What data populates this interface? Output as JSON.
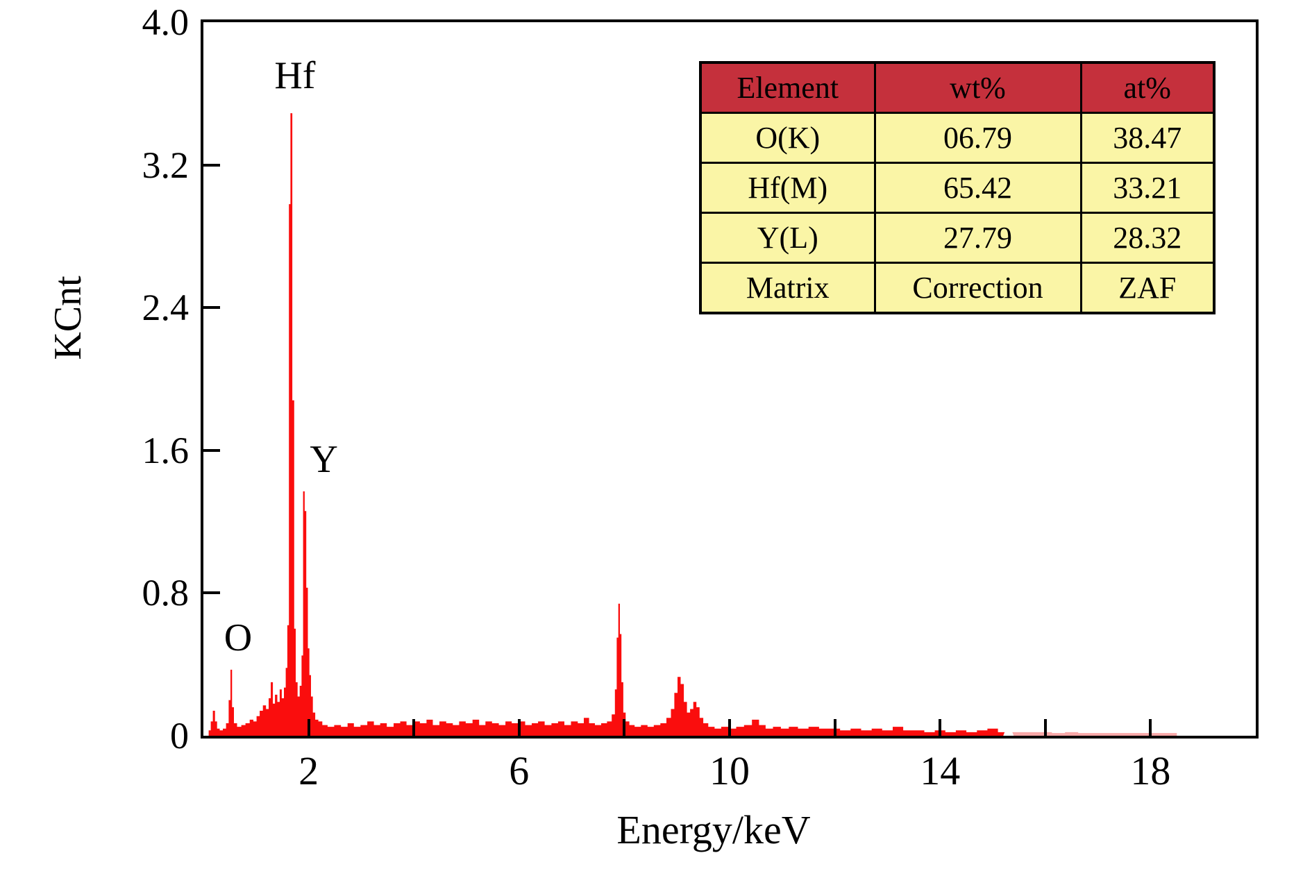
{
  "figure": {
    "background": "#ffffff",
    "frame_color": "#000000"
  },
  "chart_data": {
    "type": "area",
    "title": "",
    "xlabel": "Energy/keV",
    "ylabel": "KCnt",
    "xlim": [
      0,
      20
    ],
    "ylim": [
      0,
      4.0
    ],
    "grid": false,
    "x_ticks": [
      {
        "v": 2,
        "label": "2"
      },
      {
        "v": 4,
        "label": ""
      },
      {
        "v": 6,
        "label": "6"
      },
      {
        "v": 8,
        "label": ""
      },
      {
        "v": 10,
        "label": "10"
      },
      {
        "v": 12,
        "label": ""
      },
      {
        "v": 14,
        "label": "14"
      },
      {
        "v": 16,
        "label": ""
      },
      {
        "v": 18,
        "label": "18"
      }
    ],
    "y_ticks": [
      {
        "v": 0,
        "label": "0"
      },
      {
        "v": 0.8,
        "label": "0.8"
      },
      {
        "v": 1.6,
        "label": "1.6"
      },
      {
        "v": 2.4,
        "label": "2.4"
      },
      {
        "v": 3.2,
        "label": "3.2"
      },
      {
        "v": 4.0,
        "label": "4.0"
      }
    ],
    "annotations": [
      {
        "text": "O",
        "x": 0.66,
        "y": 0.55
      },
      {
        "text": "Hf",
        "x": 1.74,
        "y": 3.7
      },
      {
        "text": "Y",
        "x": 2.29,
        "y": 1.55
      }
    ],
    "series": [
      {
        "name": "EDS spectrum",
        "color": "#FA0D0D",
        "faded_color": "#F9A8A8",
        "faded_above_x": 15.3,
        "points": [
          [
            0.08,
            0.0
          ],
          [
            0.12,
            0.03
          ],
          [
            0.16,
            0.08
          ],
          [
            0.2,
            0.14
          ],
          [
            0.24,
            0.08
          ],
          [
            0.28,
            0.04
          ],
          [
            0.34,
            0.03
          ],
          [
            0.4,
            0.04
          ],
          [
            0.46,
            0.07
          ],
          [
            0.5,
            0.2
          ],
          [
            0.53,
            0.37
          ],
          [
            0.56,
            0.16
          ],
          [
            0.6,
            0.07
          ],
          [
            0.68,
            0.05
          ],
          [
            0.76,
            0.06
          ],
          [
            0.84,
            0.07
          ],
          [
            0.92,
            0.09
          ],
          [
            0.98,
            0.08
          ],
          [
            1.04,
            0.11
          ],
          [
            1.1,
            0.14
          ],
          [
            1.16,
            0.17
          ],
          [
            1.22,
            0.15
          ],
          [
            1.26,
            0.21
          ],
          [
            1.3,
            0.3
          ],
          [
            1.34,
            0.18
          ],
          [
            1.38,
            0.23
          ],
          [
            1.43,
            0.19
          ],
          [
            1.47,
            0.26
          ],
          [
            1.51,
            0.21
          ],
          [
            1.55,
            0.27
          ],
          [
            1.58,
            0.38
          ],
          [
            1.61,
            0.62
          ],
          [
            1.64,
            2.98
          ],
          [
            1.67,
            3.49
          ],
          [
            1.71,
            1.88
          ],
          [
            1.74,
            0.6
          ],
          [
            1.77,
            0.3
          ],
          [
            1.81,
            0.22
          ],
          [
            1.85,
            0.28
          ],
          [
            1.88,
            0.45
          ],
          [
            1.91,
            1.37
          ],
          [
            1.94,
            1.26
          ],
          [
            1.97,
            0.83
          ],
          [
            2.0,
            0.49
          ],
          [
            2.03,
            0.34
          ],
          [
            2.06,
            0.22
          ],
          [
            2.1,
            0.13
          ],
          [
            2.15,
            0.09
          ],
          [
            2.22,
            0.08
          ],
          [
            2.3,
            0.06
          ],
          [
            2.42,
            0.05
          ],
          [
            2.55,
            0.06
          ],
          [
            2.68,
            0.05
          ],
          [
            2.8,
            0.07
          ],
          [
            2.92,
            0.05
          ],
          [
            3.05,
            0.06
          ],
          [
            3.18,
            0.08
          ],
          [
            3.3,
            0.06
          ],
          [
            3.42,
            0.07
          ],
          [
            3.55,
            0.05
          ],
          [
            3.68,
            0.07
          ],
          [
            3.8,
            0.08
          ],
          [
            3.92,
            0.06
          ],
          [
            4.05,
            0.08
          ],
          [
            4.18,
            0.07
          ],
          [
            4.3,
            0.09
          ],
          [
            4.42,
            0.06
          ],
          [
            4.55,
            0.08
          ],
          [
            4.68,
            0.07
          ],
          [
            4.8,
            0.06
          ],
          [
            4.92,
            0.08
          ],
          [
            5.05,
            0.07
          ],
          [
            5.18,
            0.09
          ],
          [
            5.3,
            0.06
          ],
          [
            5.42,
            0.08
          ],
          [
            5.55,
            0.07
          ],
          [
            5.68,
            0.06
          ],
          [
            5.8,
            0.08
          ],
          [
            5.92,
            0.07
          ],
          [
            6.05,
            0.08
          ],
          [
            6.18,
            0.06
          ],
          [
            6.3,
            0.07
          ],
          [
            6.42,
            0.08
          ],
          [
            6.55,
            0.06
          ],
          [
            6.68,
            0.07
          ],
          [
            6.8,
            0.08
          ],
          [
            6.92,
            0.06
          ],
          [
            7.05,
            0.08
          ],
          [
            7.18,
            0.07
          ],
          [
            7.28,
            0.1
          ],
          [
            7.38,
            0.07
          ],
          [
            7.5,
            0.06
          ],
          [
            7.62,
            0.07
          ],
          [
            7.72,
            0.08
          ],
          [
            7.8,
            0.12
          ],
          [
            7.84,
            0.26
          ],
          [
            7.87,
            0.55
          ],
          [
            7.9,
            0.74
          ],
          [
            7.93,
            0.57
          ],
          [
            7.96,
            0.3
          ],
          [
            8.0,
            0.13
          ],
          [
            8.05,
            0.08
          ],
          [
            8.14,
            0.06
          ],
          [
            8.25,
            0.05
          ],
          [
            8.38,
            0.06
          ],
          [
            8.5,
            0.05
          ],
          [
            8.62,
            0.06
          ],
          [
            8.75,
            0.07
          ],
          [
            8.85,
            0.1
          ],
          [
            8.92,
            0.15
          ],
          [
            8.98,
            0.24
          ],
          [
            9.04,
            0.33
          ],
          [
            9.1,
            0.29
          ],
          [
            9.16,
            0.19
          ],
          [
            9.22,
            0.13
          ],
          [
            9.28,
            0.15
          ],
          [
            9.34,
            0.19
          ],
          [
            9.4,
            0.16
          ],
          [
            9.46,
            0.1
          ],
          [
            9.54,
            0.07
          ],
          [
            9.65,
            0.05
          ],
          [
            9.78,
            0.04
          ],
          [
            9.9,
            0.05
          ],
          [
            10.05,
            0.04
          ],
          [
            10.2,
            0.05
          ],
          [
            10.35,
            0.06
          ],
          [
            10.5,
            0.09
          ],
          [
            10.62,
            0.06
          ],
          [
            10.75,
            0.04
          ],
          [
            10.9,
            0.05
          ],
          [
            11.05,
            0.04
          ],
          [
            11.2,
            0.05
          ],
          [
            11.4,
            0.04
          ],
          [
            11.6,
            0.05
          ],
          [
            11.8,
            0.04
          ],
          [
            12.0,
            0.04
          ],
          [
            12.2,
            0.03
          ],
          [
            12.4,
            0.04
          ],
          [
            12.6,
            0.03
          ],
          [
            12.8,
            0.04
          ],
          [
            13.0,
            0.03
          ],
          [
            13.2,
            0.05
          ],
          [
            13.4,
            0.03
          ],
          [
            13.6,
            0.03
          ],
          [
            13.8,
            0.02
          ],
          [
            14.0,
            0.03
          ],
          [
            14.2,
            0.02
          ],
          [
            14.4,
            0.03
          ],
          [
            14.6,
            0.02
          ],
          [
            14.8,
            0.03
          ],
          [
            15.0,
            0.04
          ],
          [
            15.2,
            0.02
          ],
          [
            15.4,
            0.02
          ],
          [
            15.6,
            0.02
          ],
          [
            15.8,
            0.02
          ],
          [
            16.0,
            0.02
          ],
          [
            16.25,
            0.015
          ],
          [
            16.5,
            0.02
          ],
          [
            16.75,
            0.015
          ],
          [
            17.0,
            0.015
          ],
          [
            17.25,
            0.015
          ],
          [
            17.5,
            0.015
          ],
          [
            17.75,
            0.015
          ],
          [
            18.0,
            0.015
          ],
          [
            18.25,
            0.015
          ],
          [
            18.45,
            0.015
          ],
          [
            18.55,
            0.0
          ]
        ]
      }
    ]
  },
  "table": {
    "header_bg": "#C5303C",
    "body_bg": "#FAF5A6",
    "text_color": "#000000",
    "headers": [
      "Element",
      "wt%",
      "at%"
    ],
    "rows": [
      [
        "O(K)",
        "06.79",
        "38.47"
      ],
      [
        "Hf(M)",
        "65.42",
        "33.21"
      ],
      [
        "Y(L)",
        "27.79",
        "28.32"
      ],
      [
        "Matrix",
        "Correction",
        "ZAF"
      ]
    ]
  }
}
